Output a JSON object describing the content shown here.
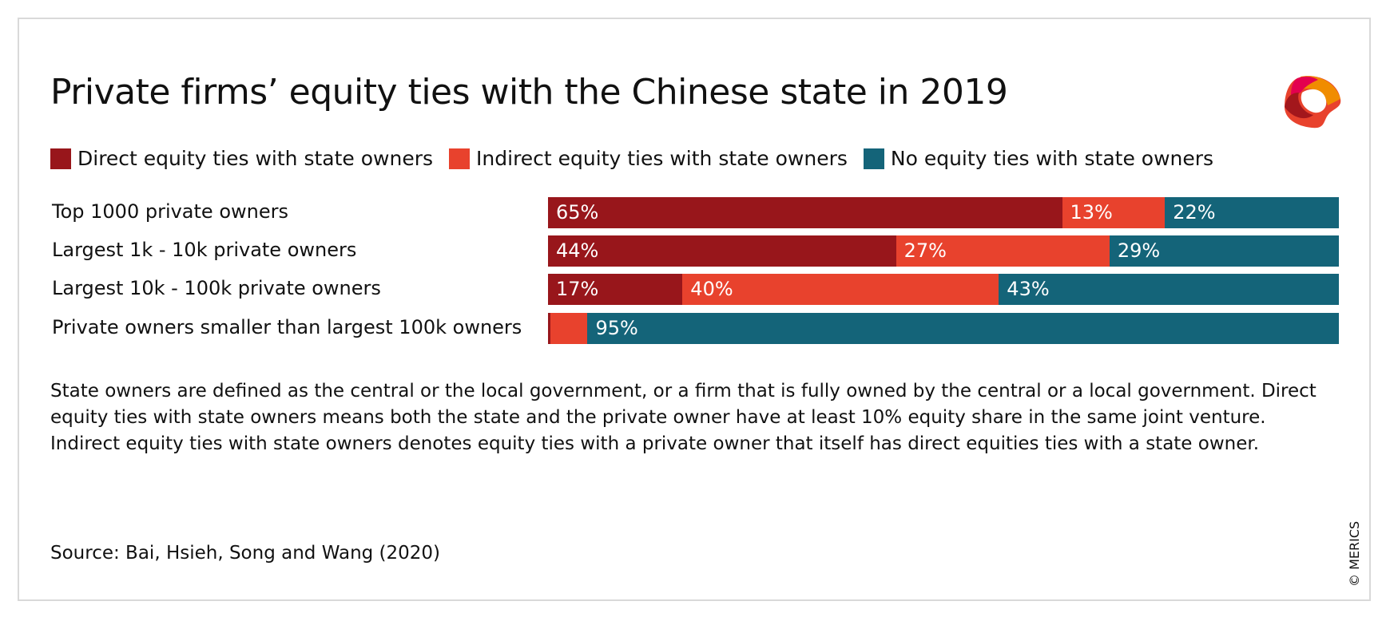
{
  "title": "Private firms’ equity ties with the Chinese state in 2019",
  "chart_data": {
    "type": "bar",
    "orientation": "horizontal",
    "stacked": true,
    "title": "Private firms’ equity ties with the Chinese state in 2019",
    "categories": [
      "Top 1000 private owners",
      "Largest 1k - 10k private owners",
      "Largest 10k - 100k private owners",
      "Private owners smaller than largest 100k owners"
    ],
    "series": [
      {
        "name": "Direct equity ties with state owners",
        "color": "#98161b",
        "values": [
          65,
          44,
          17,
          0.3
        ],
        "labels": [
          "65%",
          "44%",
          "17%",
          ""
        ]
      },
      {
        "name": "Indirect equity ties with state owners",
        "color": "#e8422d",
        "values": [
          13,
          27,
          40,
          4.7
        ],
        "labels": [
          "13%",
          "27%",
          "40%",
          ""
        ]
      },
      {
        "name": "No equity ties with state owners",
        "color": "#146479",
        "values": [
          22,
          29,
          43,
          95
        ],
        "labels": [
          "22%",
          "29%",
          "43%",
          "95%"
        ]
      }
    ],
    "xlim": [
      0,
      100
    ],
    "legend": "top"
  },
  "note": "State owners are defined as the central or the local government, or a firm that is fully owned by the central or a local government. Direct equity ties with state owners means both the state and the private owner have at least 10% equity share in the same joint venture. Indirect equity ties with state owners denotes equity ties with a private owner that itself has direct equities ties with a state owner.",
  "source": "Source: Bai, Hsieh, Song and Wang (2020)",
  "copyright": "© MERICS",
  "logo": "MERICS"
}
